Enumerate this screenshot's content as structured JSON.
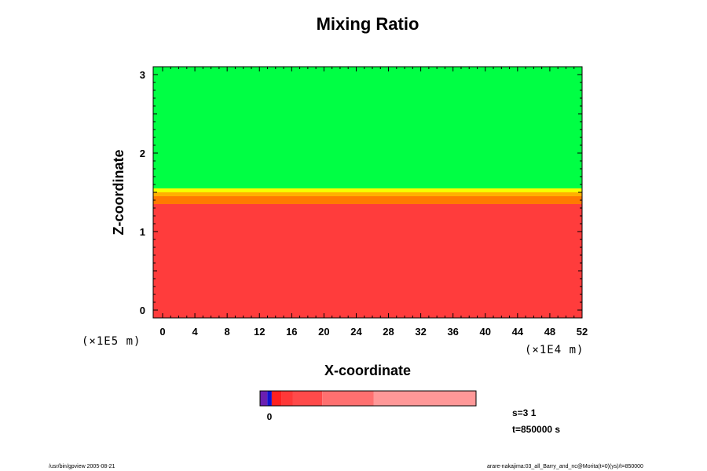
{
  "chart_data": {
    "type": "heatmap",
    "title": "Mixing Ratio",
    "xlabel": "X-coordinate",
    "ylabel": "Z-coordinate",
    "xlim": [
      0,
      52
    ],
    "ylim": [
      0,
      3
    ],
    "x_ticks": [
      "0",
      "4",
      "8",
      "12",
      "16",
      "20",
      "24",
      "28",
      "32",
      "36",
      "40",
      "44",
      "48",
      "52"
    ],
    "y_ticks": [
      "0",
      "1",
      "2",
      "3"
    ],
    "x_unit": "(×1E4 m)",
    "y_unit": "(×1E5 m)",
    "layers": [
      {
        "z_from": 1.55,
        "z_to": 3.1,
        "color": "#00ff44"
      },
      {
        "z_from": 1.5,
        "z_to": 1.55,
        "color": "#f5ff00"
      },
      {
        "z_from": 1.45,
        "z_to": 1.5,
        "color": "#ffb000"
      },
      {
        "z_from": 1.35,
        "z_to": 1.45,
        "color": "#ff7a00"
      },
      {
        "z_from": -0.1,
        "z_to": 1.35,
        "color": "#ff3c3c"
      }
    ],
    "colorbar": {
      "tick_label": "0",
      "segments": [
        {
          "color": "#6a1fb0",
          "weight": 1
        },
        {
          "color": "#1010d0",
          "weight": 0.6
        },
        {
          "color": "#ff2020",
          "weight": 1.3
        },
        {
          "color": "#ff3838",
          "weight": 1.6
        },
        {
          "color": "#ff4a4a",
          "weight": 4.0
        },
        {
          "color": "#ff7070",
          "weight": 7.0
        },
        {
          "color": "#ff9898",
          "weight": 14.0
        }
      ]
    }
  },
  "info": {
    "s_label": "s=3 1",
    "t_label": "t=850000 s"
  },
  "footer": {
    "left": "/usr/bin/gpview 2005-08-21",
    "right": "arare-nakajima:03_all_Barry_and_nc@Morita(t=0)(ys)/t=850000"
  }
}
